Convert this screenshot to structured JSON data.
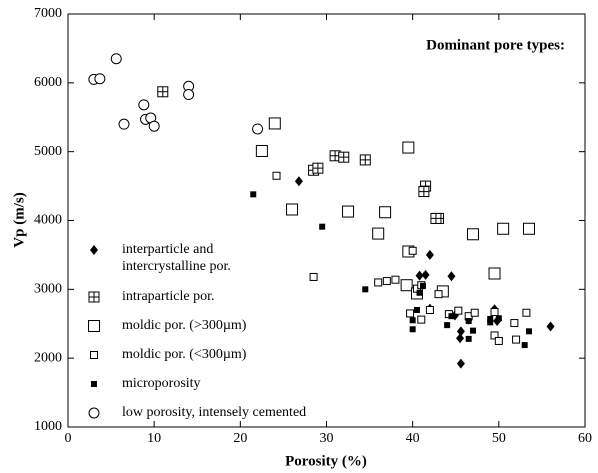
{
  "chart_data": {
    "type": "scatter",
    "annotation": "Dominant pore types:",
    "x_label": "Porosity (%)",
    "y_label": "Vp (m/s)",
    "xlim": [
      0,
      60
    ],
    "xticks": [
      0,
      10,
      20,
      30,
      40,
      50,
      60
    ],
    "ylim": [
      1000,
      7000
    ],
    "yticks": [
      1000,
      2000,
      3000,
      4000,
      5000,
      6000,
      7000
    ],
    "legend": "lower left",
    "series": [
      {
        "name": "interparticle and\nintercrystalline por.",
        "color": "#000000",
        "marker": "diamond",
        "x": [
          26.8,
          40.8,
          41.5,
          42,
          44.5,
          42,
          41,
          44.9,
          45.6,
          45.5,
          45.6,
          46.5,
          49.5,
          49.8,
          56
        ],
        "values": [
          4570,
          3200,
          3210,
          3500,
          3190,
          2720,
          3050,
          2620,
          2390,
          2290,
          1920,
          2560,
          2710,
          2540,
          2460
        ]
      },
      {
        "name": "intraparticle por.",
        "color": "#000000",
        "marker": "crossed-square",
        "x": [
          11,
          28.5,
          29,
          31,
          32,
          34.5,
          41.5,
          41.3,
          43,
          42.7
        ],
        "values": [
          5870,
          4730,
          4760,
          4940,
          4920,
          4880,
          4500,
          4420,
          4030,
          4030
        ]
      },
      {
        "name": "moldic por. (>300µm)",
        "color": "#000000",
        "marker": "large-square",
        "x": [
          22.5,
          24,
          26,
          32.5,
          36.8,
          36,
          39.5,
          47,
          50.5,
          53.5,
          39.5,
          39.3,
          40.5,
          43.5,
          49.5
        ],
        "values": [
          5010,
          5410,
          4160,
          4130,
          4120,
          3810,
          5060,
          3800,
          3880,
          3880,
          3550,
          3060,
          2940,
          2970,
          3230
        ]
      },
      {
        "name": "moldic por. (<300µm)",
        "color": "#000000",
        "marker": "small-square",
        "x": [
          24.2,
          28.5,
          36,
          37,
          38,
          40,
          40.5,
          41,
          39.7,
          43,
          44.2,
          45.3,
          46.5,
          47.2,
          49.5,
          49.5,
          50,
          51.8,
          52,
          53.2,
          41,
          42
        ],
        "values": [
          4650,
          3180,
          3100,
          3120,
          3140,
          3560,
          3010,
          3060,
          2650,
          2930,
          2640,
          2690,
          2610,
          2660,
          2670,
          2330,
          2250,
          2510,
          2270,
          2660,
          2560,
          2700
        ]
      },
      {
        "name": "microporosity",
        "color": "#000000",
        "marker": "filled-square",
        "x": [
          21.5,
          29.5,
          34.5,
          40,
          40,
          40.5,
          44,
          44.5,
          46.5,
          46.5,
          47,
          49,
          49,
          50,
          53,
          53.5,
          40.8,
          41.2
        ],
        "values": [
          4380,
          3910,
          3000,
          2550,
          2420,
          2700,
          2480,
          2610,
          2540,
          2280,
          2400,
          2520,
          2570,
          2580,
          2190,
          2390,
          2950,
          3050
        ]
      },
      {
        "name": "low porosity, intensely cemented",
        "color": "#000000",
        "marker": "circle",
        "x": [
          3,
          3.7,
          5.6,
          6.5,
          8.8,
          9,
          9.6,
          10,
          14,
          14,
          22
        ],
        "values": [
          6050,
          6060,
          6350,
          5400,
          5680,
          5470,
          5490,
          5370,
          5950,
          5830,
          5330
        ]
      }
    ]
  }
}
